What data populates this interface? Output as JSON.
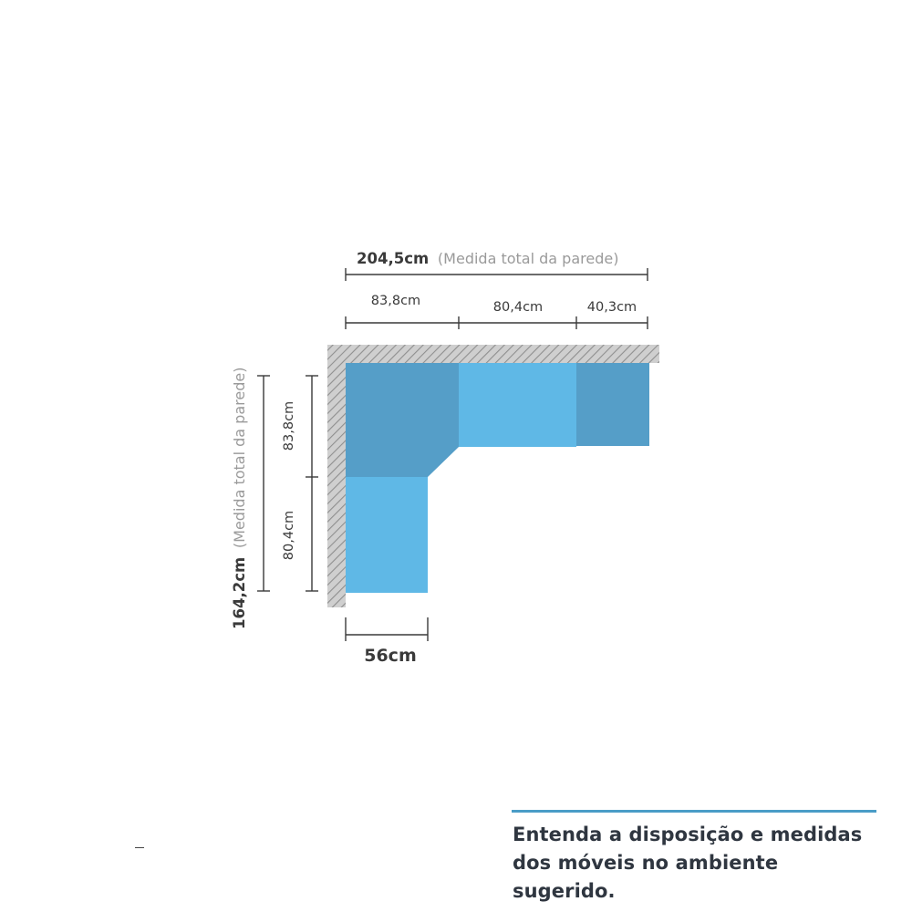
{
  "top_total": {
    "value": "204,5cm",
    "note": "(Medida total da parede)"
  },
  "top_segments": [
    "83,8cm",
    "80,4cm",
    "40,3cm"
  ],
  "left_total": {
    "value": "164,2cm",
    "note": "(Medida total da parede)"
  },
  "left_segments": [
    "83,8cm",
    "80,4cm"
  ],
  "depth": "56cm",
  "caption": {
    "line1": "Entenda a disposição e medidas",
    "line2": "dos móveis no ambiente sugerido."
  },
  "colors": {
    "module_dark": "#559ec8",
    "module_light": "#5fb8e6",
    "wall": "#b3b3b3",
    "accent": "#4a9cc7"
  }
}
